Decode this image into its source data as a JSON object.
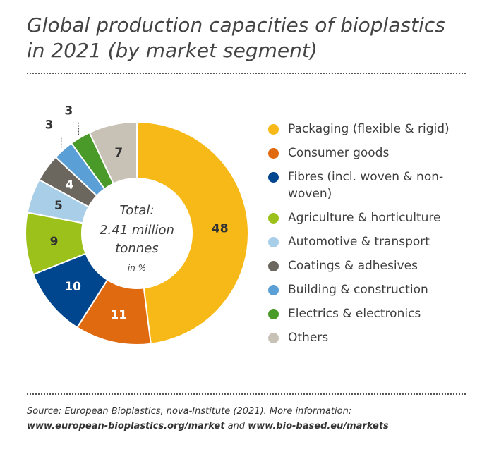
{
  "title_lines": [
    "Global production capacities of bioplastics",
    "in 2021 (by market segment)"
  ],
  "chart_data": {
    "type": "pie",
    "donut": true,
    "center_label": [
      "Total:",
      "2.41 million",
      "tonnes"
    ],
    "unit_label": "in %",
    "categories": [
      "Packaging (flexible & rigid)",
      "Consumer goods",
      "Fibres (incl. woven & non-woven)",
      "Agriculture & horticulture",
      "Automotive & transport",
      "Coatings & adhesives",
      "Building & construction",
      "Electrics & electronics",
      "Others"
    ],
    "values": [
      48,
      11,
      10,
      9,
      5,
      4,
      3,
      3,
      7
    ],
    "colors": [
      "#f7b918",
      "#e06a10",
      "#00468e",
      "#9dc11b",
      "#a9cfe8",
      "#6b665e",
      "#5a9fd6",
      "#4a9a2a",
      "#c8c1b6"
    ],
    "label_colors": [
      "#333333",
      "#ffffff",
      "#ffffff",
      "#333333",
      "#333333",
      "#ffffff",
      "#333333",
      "#333333",
      "#333333"
    ],
    "legend_placement": "right"
  },
  "legend": {
    "items": [
      {
        "label": "Packaging (flexible & rigid)",
        "color": "#f7b918"
      },
      {
        "label": "Consumer goods",
        "color": "#e06a10"
      },
      {
        "label": "Fibres (incl. woven & non-woven)",
        "color": "#00468e"
      },
      {
        "label": "Agriculture & horticulture",
        "color": "#9dc11b"
      },
      {
        "label": "Automotive & transport",
        "color": "#a9cfe8"
      },
      {
        "label": "Coatings & adhesives",
        "color": "#6b665e"
      },
      {
        "label": "Building & construction",
        "color": "#5a9fd6"
      },
      {
        "label": "Electrics & electronics",
        "color": "#4a9a2a"
      },
      {
        "label": "Others",
        "color": "#c8c1b6"
      }
    ]
  },
  "source": {
    "text": "Source: European Bioplastics, nova-Institute (2021). More information:",
    "link1": "www.european-bioplastics.org/market",
    "conjunction": " and ",
    "link2": "www.bio-based.eu/markets"
  }
}
